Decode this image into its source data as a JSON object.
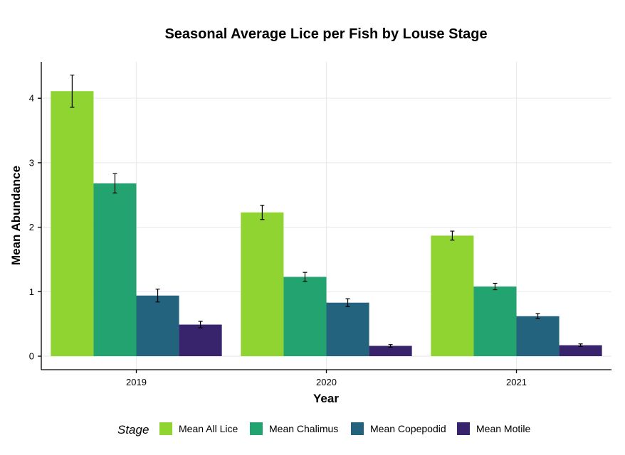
{
  "chart_data": {
    "type": "bar",
    "title": "Seasonal Average Lice per Fish by Louse Stage",
    "xlabel": "Year",
    "ylabel": "Mean Abundance",
    "categories": [
      "2019",
      "2020",
      "2021"
    ],
    "ylim": [
      -0.2,
      4.55
    ],
    "yticks": [
      0,
      1,
      2,
      3,
      4
    ],
    "grid": true,
    "legend_position": "bottom",
    "legend_title": "Stage",
    "series": [
      {
        "name": "Mean All Lice",
        "color": "#8fd431",
        "values": [
          4.11,
          2.23,
          1.87
        ],
        "errors": [
          0.25,
          0.11,
          0.07
        ]
      },
      {
        "name": "Mean Chalimus",
        "color": "#22a36f",
        "values": [
          2.68,
          1.23,
          1.08
        ],
        "errors": [
          0.15,
          0.07,
          0.05
        ]
      },
      {
        "name": "Mean Copepodid",
        "color": "#23637e",
        "values": [
          0.94,
          0.83,
          0.62
        ],
        "errors": [
          0.1,
          0.06,
          0.04
        ]
      },
      {
        "name": "Mean Motile",
        "color": "#38246d",
        "values": [
          0.49,
          0.16,
          0.17
        ],
        "errors": [
          0.05,
          0.02,
          0.02
        ]
      }
    ]
  }
}
